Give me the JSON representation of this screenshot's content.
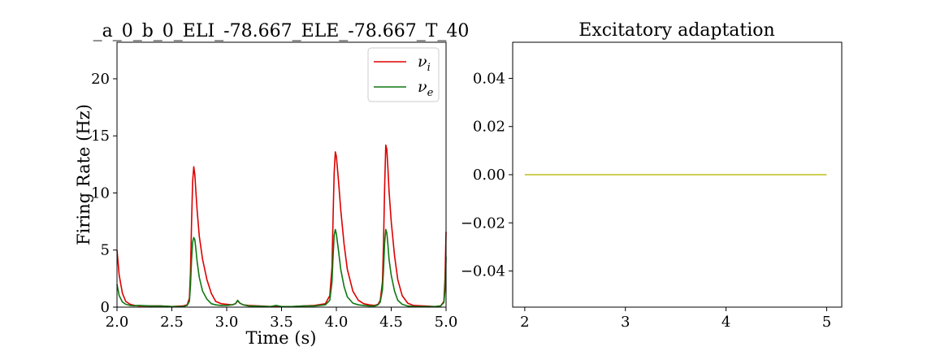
{
  "figure": {
    "background": "#ffffff"
  },
  "chart_data": [
    {
      "type": "line",
      "title": "_a_0_b_0_ELI_-78.667_ELE_-78.667_T_40",
      "xlabel": "Time (s)",
      "ylabel": "Firing Rate (Hz)",
      "xlim": [
        2.0,
        5.0
      ],
      "ylim": [
        0,
        23.2
      ],
      "xticks": [
        2.0,
        2.5,
        3.0,
        3.5,
        4.0,
        4.5,
        5.0
      ],
      "xtick_labels": [
        "2.0",
        "2.5",
        "3.0",
        "3.5",
        "4.0",
        "4.5",
        "5.0"
      ],
      "yticks": [
        0,
        5,
        10,
        15,
        20
      ],
      "ytick_labels": [
        "0",
        "5",
        "10",
        "15",
        "20"
      ],
      "grid": false,
      "legend": {
        "position": "top-right",
        "entries": [
          "ν_i",
          "ν_e"
        ]
      },
      "series": [
        {
          "name": "ν_i",
          "label_main": "ν",
          "label_sub": "i",
          "color": "#dd0000",
          "x": [
            2.0,
            2.02,
            2.05,
            2.08,
            2.12,
            2.16,
            2.2,
            2.3,
            2.4,
            2.5,
            2.6,
            2.64,
            2.66,
            2.67,
            2.68,
            2.69,
            2.7,
            2.71,
            2.72,
            2.73,
            2.75,
            2.78,
            2.82,
            2.86,
            2.9,
            2.95,
            3.0,
            3.05,
            3.08,
            3.1,
            3.12,
            3.15,
            3.2,
            3.3,
            3.4,
            3.45,
            3.5,
            3.6,
            3.7,
            3.8,
            3.9,
            3.94,
            3.96,
            3.97,
            3.98,
            3.99,
            4.0,
            4.02,
            4.04,
            4.07,
            4.1,
            4.15,
            4.2,
            4.25,
            4.3,
            4.35,
            4.38,
            4.4,
            4.42,
            4.43,
            4.44,
            4.45,
            4.46,
            4.47,
            4.48,
            4.5,
            4.53,
            4.56,
            4.6,
            4.65,
            4.7,
            4.8,
            4.9,
            4.95,
            4.98,
            4.99,
            5.0
          ],
          "y": [
            5.0,
            2.8,
            1.2,
            0.5,
            0.25,
            0.15,
            0.1,
            0.1,
            0.1,
            0.05,
            0.1,
            0.2,
            0.8,
            3.0,
            7.5,
            11.0,
            12.3,
            11.6,
            10.0,
            8.5,
            6.2,
            4.2,
            2.4,
            1.2,
            0.5,
            0.3,
            0.25,
            0.2,
            0.3,
            0.55,
            0.35,
            0.2,
            0.15,
            0.1,
            0.05,
            0.1,
            0.05,
            0.05,
            0.1,
            0.15,
            0.3,
            1.0,
            3.5,
            8.0,
            11.8,
            13.6,
            13.2,
            11.0,
            8.5,
            5.5,
            3.3,
            1.4,
            0.6,
            0.3,
            0.2,
            0.15,
            0.25,
            0.6,
            2.2,
            5.5,
            10.5,
            14.2,
            13.8,
            12.2,
            10.2,
            7.5,
            4.5,
            2.4,
            1.0,
            0.35,
            0.15,
            0.1,
            0.05,
            0.1,
            0.5,
            2.5,
            6.6
          ]
        },
        {
          "name": "ν_e",
          "label_main": "ν",
          "label_sub": "e",
          "color": "#117711",
          "x": [
            2.0,
            2.02,
            2.05,
            2.08,
            2.12,
            2.16,
            2.2,
            2.3,
            2.4,
            2.5,
            2.6,
            2.64,
            2.66,
            2.67,
            2.68,
            2.69,
            2.7,
            2.71,
            2.72,
            2.73,
            2.75,
            2.78,
            2.82,
            2.86,
            2.9,
            2.95,
            3.0,
            3.05,
            3.08,
            3.1,
            3.12,
            3.15,
            3.2,
            3.3,
            3.4,
            3.45,
            3.5,
            3.6,
            3.7,
            3.8,
            3.9,
            3.94,
            3.96,
            3.97,
            3.98,
            3.99,
            4.0,
            4.02,
            4.04,
            4.07,
            4.1,
            4.15,
            4.2,
            4.25,
            4.3,
            4.35,
            4.38,
            4.4,
            4.42,
            4.43,
            4.44,
            4.45,
            4.46,
            4.47,
            4.48,
            4.5,
            4.53,
            4.56,
            4.6,
            4.65,
            4.7,
            4.8,
            4.9,
            4.95,
            4.98,
            4.99,
            5.0
          ],
          "y": [
            2.0,
            1.0,
            0.45,
            0.25,
            0.15,
            0.12,
            0.15,
            0.1,
            0.1,
            0.05,
            0.05,
            0.15,
            0.5,
            1.8,
            4.2,
            5.7,
            6.1,
            5.9,
            5.0,
            4.0,
            2.6,
            1.4,
            0.7,
            0.3,
            0.2,
            0.15,
            0.15,
            0.2,
            0.3,
            0.6,
            0.35,
            0.2,
            0.1,
            0.08,
            0.05,
            0.15,
            0.05,
            0.05,
            0.1,
            0.1,
            0.2,
            0.6,
            2.2,
            4.5,
            6.3,
            6.8,
            6.4,
            4.9,
            3.3,
            1.8,
            0.9,
            0.35,
            0.2,
            0.15,
            0.1,
            0.1,
            0.2,
            0.45,
            1.5,
            3.2,
            5.6,
            6.8,
            6.5,
            5.5,
            4.2,
            2.8,
            1.4,
            0.6,
            0.25,
            0.1,
            0.05,
            0.05,
            0.05,
            0.1,
            0.4,
            1.5,
            4.4
          ]
        }
      ]
    },
    {
      "type": "line",
      "title": "Excitatory adaptation",
      "xlabel": "",
      "ylabel": "",
      "xlim": [
        1.88,
        5.15
      ],
      "ylim": [
        -0.055,
        0.055
      ],
      "xticks": [
        2,
        3,
        4,
        5
      ],
      "xtick_labels": [
        "2",
        "3",
        "4",
        "5"
      ],
      "yticks": [
        0.04,
        0.02,
        0.0,
        -0.02,
        -0.04
      ],
      "ytick_labels": [
        "0.04",
        "0.02",
        "0.00",
        "−0.02",
        "−0.04"
      ],
      "grid": false,
      "legend": null,
      "series": [
        {
          "name": "",
          "color": "#bfbf1a",
          "x": [
            2.0,
            5.0
          ],
          "y": [
            0.0,
            0.0
          ]
        }
      ]
    }
  ]
}
